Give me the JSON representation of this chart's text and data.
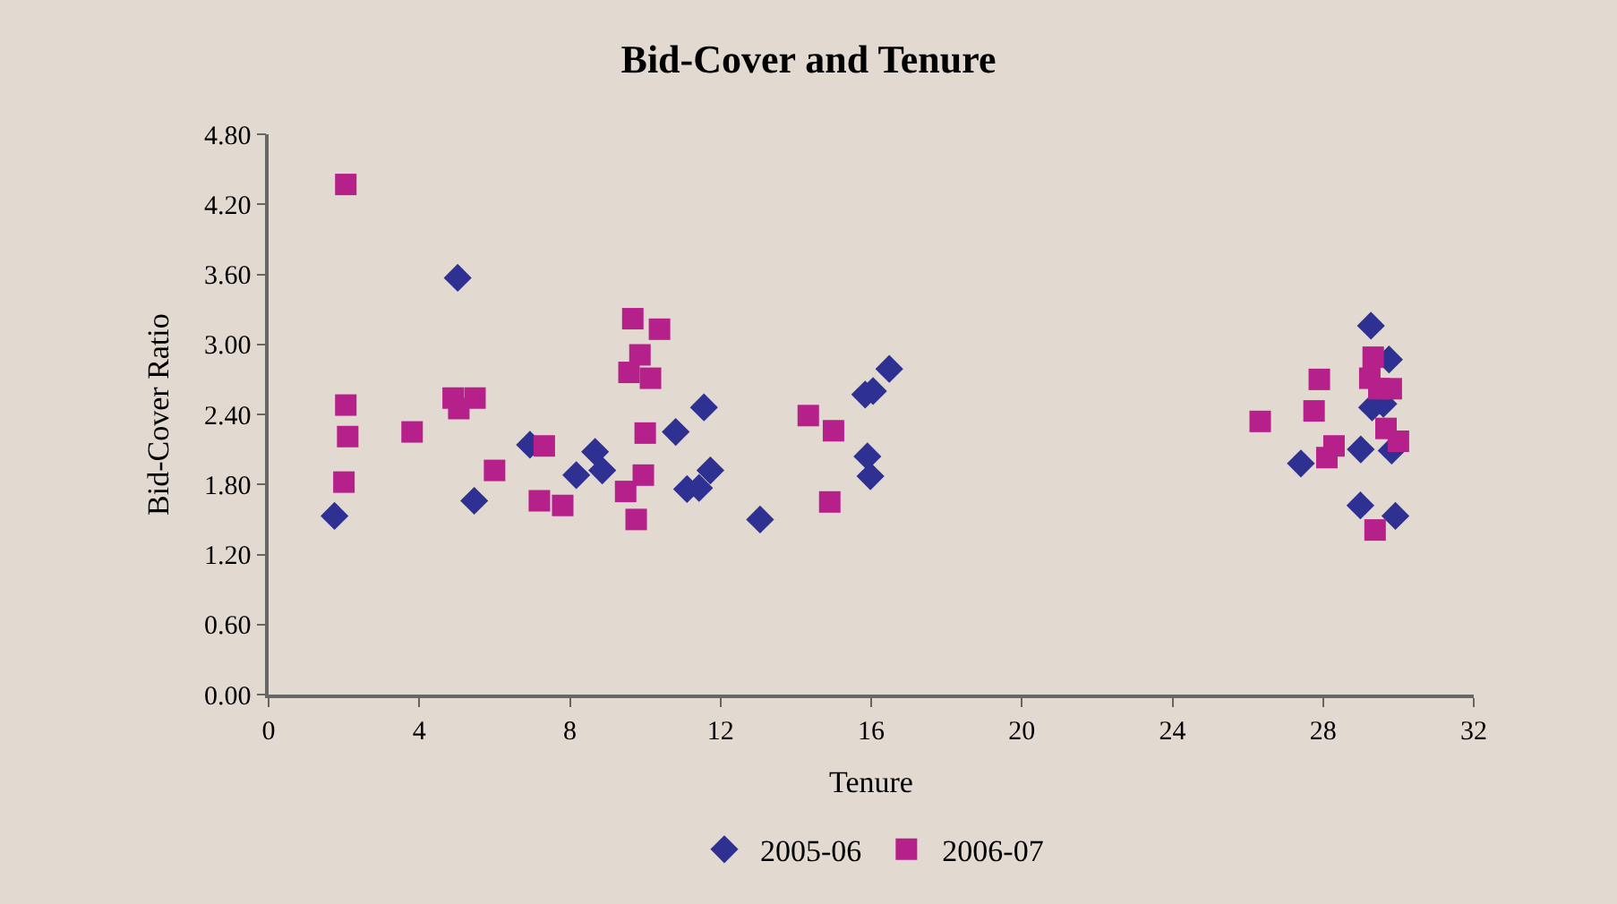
{
  "chart_data": {
    "type": "scatter",
    "title": "Bid-Cover and Tenure",
    "xlabel": "Tenure",
    "ylabel": "Bid-Cover Ratio",
    "xlim": [
      0,
      32
    ],
    "xticks": [
      0,
      4,
      8,
      12,
      16,
      20,
      24,
      28,
      32
    ],
    "ylim": [
      0,
      4.8
    ],
    "yticks": [
      {
        "value": 0,
        "label": "0.00"
      },
      {
        "value": 0.6,
        "label": "0.60"
      },
      {
        "value": 1.2,
        "label": "1.20"
      },
      {
        "value": 1.8,
        "label": "1.80"
      },
      {
        "value": 2.4,
        "label": "2.40"
      },
      {
        "value": 3.0,
        "label": "3.00"
      },
      {
        "value": 3.6,
        "label": "3.60"
      },
      {
        "value": 4.2,
        "label": "4.20"
      },
      {
        "value": 4.8,
        "label": "4.80"
      }
    ],
    "grid": false,
    "legend": "bottom",
    "series": [
      {
        "name": "2005-06",
        "color": "#2e3192",
        "marker": "diamond",
        "x": [
          1.75,
          5.02,
          5.46,
          6.94,
          8.67,
          8.17,
          8.86,
          11.56,
          10.81,
          11.73,
          11.11,
          11.43,
          13.05,
          16.48,
          16.05,
          15.84,
          15.9,
          15.98,
          29.27,
          29.75,
          29.3,
          29.6,
          29.82,
          29.0,
          27.41,
          28.99,
          29.92
        ],
        "values": [
          1.53,
          3.57,
          1.66,
          2.14,
          2.08,
          1.88,
          1.92,
          2.46,
          2.25,
          1.92,
          1.76,
          1.77,
          1.5,
          2.79,
          2.6,
          2.57,
          2.04,
          1.87,
          3.16,
          2.87,
          2.46,
          2.49,
          2.09,
          2.1,
          1.98,
          1.62,
          1.53
        ]
      },
      {
        "name": "2006-07",
        "color": "#b5208a",
        "marker": "square",
        "x": [
          2.05,
          2.05,
          2.1,
          2.0,
          3.81,
          4.9,
          5.48,
          5.05,
          6.0,
          7.32,
          7.19,
          7.81,
          9.67,
          10.38,
          9.86,
          9.57,
          10.14,
          10.0,
          9.95,
          9.48,
          9.76,
          14.33,
          15.0,
          14.9,
          26.33,
          27.9,
          27.76,
          29.33,
          29.24,
          29.48,
          29.81,
          29.67,
          30.0,
          28.29,
          28.1,
          29.38
        ],
        "values": [
          4.37,
          2.48,
          2.21,
          1.82,
          2.25,
          2.54,
          2.54,
          2.45,
          1.92,
          2.13,
          1.66,
          1.62,
          3.22,
          3.13,
          2.91,
          2.76,
          2.71,
          2.24,
          1.88,
          1.74,
          1.5,
          2.39,
          2.26,
          1.65,
          2.34,
          2.7,
          2.43,
          2.89,
          2.71,
          2.62,
          2.62,
          2.28,
          2.17,
          2.13,
          2.03,
          1.41
        ]
      }
    ]
  }
}
